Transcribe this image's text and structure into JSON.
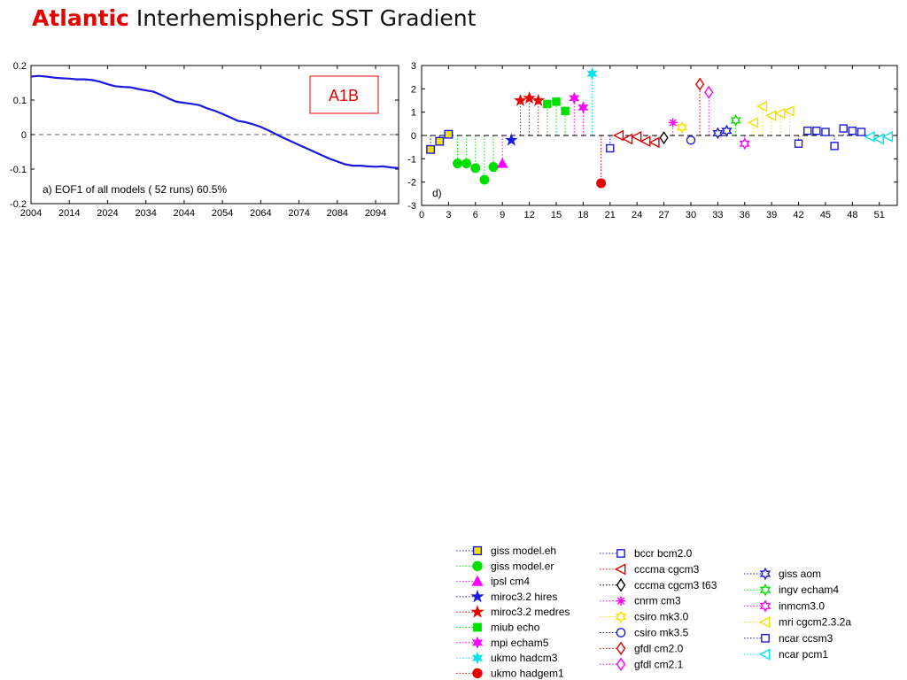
{
  "title": {
    "accent": "Atlantic",
    "rest": "Interhemispheric SST Gradient"
  },
  "scenario_label": "A1B",
  "chart_data": [
    {
      "type": "line",
      "annotation": "a) EOF1 of all models ( 52 runs)  60.5%",
      "xlim": [
        2004,
        2100
      ],
      "ylim": [
        -0.2,
        0.2
      ],
      "xticks": [
        "2004",
        "2014",
        "2024",
        "2034",
        "2044",
        "2054",
        "2064",
        "2074",
        "2084",
        "2094"
      ],
      "yticks": [
        "0.2",
        "0.1",
        "0",
        "-0.1",
        "-0.2"
      ],
      "zero_line": "dashed",
      "color": "#1a1adf",
      "x": [
        2004,
        2006,
        2008,
        2010,
        2012,
        2014,
        2016,
        2018,
        2020,
        2022,
        2024,
        2026,
        2028,
        2030,
        2032,
        2034,
        2036,
        2038,
        2040,
        2042,
        2044,
        2046,
        2048,
        2050,
        2052,
        2054,
        2056,
        2058,
        2060,
        2062,
        2064,
        2066,
        2068,
        2070,
        2072,
        2074,
        2076,
        2078,
        2080,
        2082,
        2084,
        2086,
        2088,
        2090,
        2092,
        2094,
        2096,
        2098,
        2100
      ],
      "y": [
        0.168,
        0.17,
        0.168,
        0.165,
        0.163,
        0.162,
        0.16,
        0.16,
        0.158,
        0.153,
        0.146,
        0.14,
        0.138,
        0.137,
        0.132,
        0.128,
        0.124,
        0.115,
        0.104,
        0.095,
        0.092,
        0.089,
        0.085,
        0.076,
        0.069,
        0.06,
        0.05,
        0.04,
        0.036,
        0.03,
        0.022,
        0.012,
        0.001,
        -0.01,
        -0.02,
        -0.03,
        -0.04,
        -0.05,
        -0.06,
        -0.07,
        -0.078,
        -0.086,
        -0.09,
        -0.09,
        -0.092,
        -0.093,
        -0.092,
        -0.095,
        -0.097
      ]
    },
    {
      "type": "scatter",
      "annotation": "d)",
      "xlim": [
        0,
        53
      ],
      "ylim": [
        -3,
        3
      ],
      "xticks": [
        "0",
        "3",
        "6",
        "9",
        "12",
        "15",
        "18",
        "21",
        "24",
        "27",
        "30",
        "33",
        "36",
        "39",
        "42",
        "45",
        "48",
        "51"
      ],
      "yticks": [
        "3",
        "2",
        "1",
        "0",
        "-1",
        "-2",
        "-3"
      ],
      "zero_line": "dashed",
      "series": [
        {
          "name": "giss model.eh",
          "marker": "square-filled",
          "color": "#1a1adf",
          "fill": "#f2e000",
          "points": [
            [
              1,
              -0.6
            ],
            [
              2,
              -0.25
            ],
            [
              3,
              0.05
            ]
          ]
        },
        {
          "name": "giss model.er",
          "marker": "circle-filled",
          "color": "#00e000",
          "points": [
            [
              4,
              -1.2
            ],
            [
              5,
              -1.2
            ],
            [
              6,
              -1.4
            ],
            [
              7,
              -1.9
            ],
            [
              8,
              -1.35
            ]
          ]
        },
        {
          "name": "ipsl cm4",
          "marker": "triangle-filled",
          "color": "#ff00ff",
          "points": [
            [
              9,
              -1.2
            ]
          ]
        },
        {
          "name": "miroc3.2 hires",
          "marker": "star-filled",
          "color": "#1a1adf",
          "points": [
            [
              10,
              -0.2
            ]
          ]
        },
        {
          "name": "miroc3.2 medres",
          "marker": "star-filled",
          "color": "#e60000",
          "points": [
            [
              11,
              1.5
            ],
            [
              12,
              1.6
            ],
            [
              13,
              1.5
            ]
          ]
        },
        {
          "name": "miub echo",
          "marker": "square-filled",
          "color": "#00e000",
          "points": [
            [
              14,
              1.35
            ],
            [
              15,
              1.45
            ],
            [
              16,
              1.05
            ]
          ]
        },
        {
          "name": "mpi echam5",
          "marker": "hexstar-filled",
          "color": "#ff00ff",
          "points": [
            [
              17,
              1.6
            ],
            [
              18,
              1.2
            ]
          ]
        },
        {
          "name": "ukmo hadcm3",
          "marker": "hexstar-filled",
          "color": "#00e6e6",
          "points": [
            [
              19,
              2.65
            ]
          ]
        },
        {
          "name": "ukmo hadgem1",
          "marker": "circle-filled",
          "color": "#e60000",
          "points": [
            [
              20,
              -2.05
            ]
          ]
        },
        {
          "name": "bccr bcm2.0",
          "marker": "square-open",
          "color": "#1a1adf",
          "points": [
            [
              21,
              -0.55
            ]
          ]
        },
        {
          "name": "cccma cgcm3",
          "marker": "triangle-left-open",
          "color": "#e60000",
          "points": [
            [
              22,
              0
            ],
            [
              23,
              -0.15
            ],
            [
              24,
              -0.05
            ],
            [
              25,
              -0.25
            ],
            [
              26,
              -0.3
            ]
          ]
        },
        {
          "name": "cccma cgcm3 t63",
          "marker": "diamond-open",
          "color": "#000000",
          "points": [
            [
              27,
              -0.1
            ]
          ]
        },
        {
          "name": "cnrm cm3",
          "marker": "asterisk",
          "color": "#ff00ff",
          "points": [
            [
              28,
              0.55
            ]
          ]
        },
        {
          "name": "csiro mk3.0",
          "marker": "hexstar-open",
          "color": "#f2e000",
          "points": [
            [
              29,
              0.35
            ]
          ]
        },
        {
          "name": "csiro mk3.5",
          "marker": "circle-open",
          "color": "#1a1adf",
          "points": [
            [
              30,
              -0.2
            ]
          ]
        },
        {
          "name": "gfdl cm2.0",
          "marker": "diamond-open",
          "color": "#e60000",
          "points": [
            [
              31,
              2.2
            ]
          ]
        },
        {
          "name": "gfdl cm2.1",
          "marker": "diamond-open",
          "color": "#ff00ff",
          "points": [
            [
              32,
              1.85
            ]
          ]
        },
        {
          "name": "giss aom",
          "marker": "hexstar-open",
          "color": "#1a1adf",
          "points": [
            [
              33,
              0.1
            ],
            [
              34,
              0.2
            ]
          ]
        },
        {
          "name": "ingv echam4",
          "marker": "hexstar-open",
          "color": "#00e000",
          "points": [
            [
              35,
              0.65
            ]
          ]
        },
        {
          "name": "inmcm3.0",
          "marker": "hexstar-open",
          "color": "#ff00ff",
          "points": [
            [
              36,
              -0.35
            ]
          ]
        },
        {
          "name": "mri cgcm2.3.2a",
          "marker": "triangle-left-open",
          "color": "#f2e000",
          "points": [
            [
              37,
              0.55
            ],
            [
              38,
              1.25
            ],
            [
              39,
              0.85
            ],
            [
              40,
              0.95
            ],
            [
              41,
              1.05
            ]
          ]
        },
        {
          "name": "ncar ccsm3",
          "marker": "square-open",
          "color": "#1a1adf",
          "points": [
            [
              42,
              -0.35
            ],
            [
              43,
              0.2
            ],
            [
              44,
              0.2
            ],
            [
              45,
              0.15
            ],
            [
              46,
              -0.45
            ],
            [
              47,
              0.3
            ],
            [
              48,
              0.2
            ],
            [
              49,
              0.15
            ]
          ]
        },
        {
          "name": "ncar pcm1",
          "marker": "triangle-left-open",
          "color": "#00e6e6",
          "points": [
            [
              50,
              -0.05
            ],
            [
              51,
              -0.15
            ],
            [
              52,
              -0.05
            ]
          ]
        }
      ]
    }
  ]
}
